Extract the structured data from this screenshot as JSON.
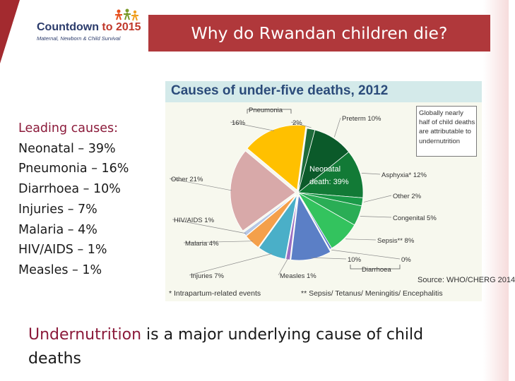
{
  "header": {
    "logo_main": "Countdown ",
    "logo_year": "to 2015",
    "logo_sub": "Maternal, Newborn & Child Survival",
    "title": "Why do Rwandan children die?"
  },
  "causes": {
    "heading": "Leading causes:",
    "items": [
      "Neonatal – 39%",
      "Pneumonia – 16%",
      "Diarrhoea – 10%",
      "Injuries – 7%",
      "Malaria – 4%",
      "HIV/AIDS – 1%",
      "Measles – 1%"
    ]
  },
  "chart_data": {
    "type": "pie",
    "title": "Causes of under-five deaths, 2012",
    "center_label": "Neonatal death: 39%",
    "slices": [
      {
        "label": "Preterm 10%",
        "value": 10,
        "color": "#0b5a2a",
        "group": "neonatal"
      },
      {
        "label": "Asphyxia* 12%",
        "value": 12,
        "color": "#127a36",
        "group": "neonatal"
      },
      {
        "label": "Other 2%",
        "value": 2,
        "color": "#1a9a48",
        "group": "neonatal"
      },
      {
        "label": "Congenital 5%",
        "value": 5,
        "color": "#2aad55",
        "group": "neonatal"
      },
      {
        "label": "Sepsis** 8%",
        "value": 8,
        "color": "#33c35e",
        "group": "neonatal"
      },
      {
        "label": "0%",
        "value": 0.5,
        "color": "#5b78c8",
        "group": "neonatal"
      },
      {
        "label": "10%",
        "value": 10,
        "color": "#5b7fc6"
      },
      {
        "label": "Measles 1%",
        "value": 1,
        "color": "#9a6fc4"
      },
      {
        "label": "Injuries 7%",
        "value": 7,
        "color": "#4aafc8"
      },
      {
        "label": "Malaria 4%",
        "value": 4,
        "color": "#f4a04b"
      },
      {
        "label": "HIV/AIDS 1%",
        "value": 1,
        "color": "#b7c7e4"
      },
      {
        "label": "Other 21%",
        "value": 21,
        "color": "#d8a9a9"
      },
      {
        "label": "16%",
        "value": 16,
        "color": "#ffc000"
      },
      {
        "label": "2%",
        "value": 2,
        "color": "#1e6b3a",
        "group": "neonatal"
      }
    ],
    "bracket_labels": {
      "pneumonia": "Pneumonia",
      "diarrhoea": "Diarrhoea"
    },
    "note": "Globally nearly half of child deaths are attributable to undernutrition",
    "source": "Source: WHO/CHERG 2014",
    "footnotes": [
      "* Intrapartum-related events",
      "** Sepsis/ Tetanus/ Meningitis/ Encephalitis"
    ]
  },
  "bottom": {
    "highlight": "Undernutrition",
    "rest": " is a major underlying cause of child deaths"
  }
}
